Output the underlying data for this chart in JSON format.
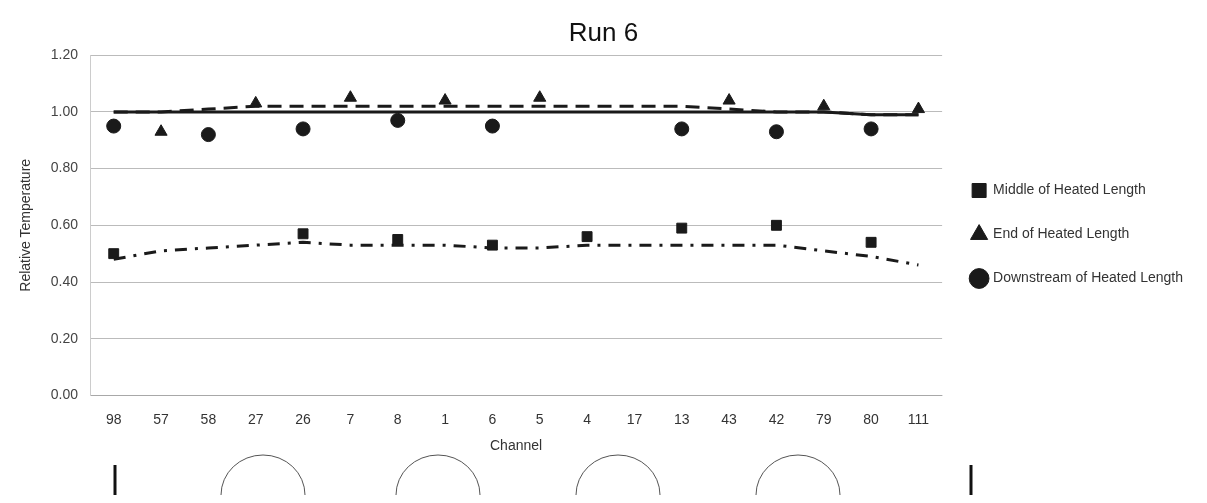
{
  "chart_data": {
    "type": "scatter",
    "title": "Run 6",
    "xlabel": "Channel",
    "ylabel": "Relative Temperature",
    "categories": [
      "98",
      "57",
      "58",
      "27",
      "26",
      "7",
      "8",
      "1",
      "6",
      "5",
      "4",
      "17",
      "13",
      "43",
      "42",
      "79",
      "80",
      "111"
    ],
    "series": [
      {
        "name": "Middle of Heated Length",
        "marker": "square",
        "color": "#1a1a1a",
        "values": [
          0.5,
          null,
          null,
          null,
          0.57,
          null,
          0.55,
          null,
          0.53,
          null,
          0.56,
          null,
          0.59,
          null,
          0.6,
          null,
          0.54,
          null
        ]
      },
      {
        "name": "End of Heated Length",
        "marker": "triangle",
        "color": "#1a1a1a",
        "values": [
          null,
          0.93,
          null,
          1.03,
          null,
          1.05,
          null,
          1.04,
          null,
          1.05,
          null,
          null,
          null,
          1.04,
          null,
          1.02,
          null,
          1.01
        ]
      },
      {
        "name": "Downstream of Heated Length",
        "marker": "circle",
        "color": "#1a1a1a",
        "values": [
          0.95,
          null,
          0.92,
          null,
          0.94,
          null,
          0.97,
          null,
          0.95,
          null,
          null,
          null,
          0.94,
          null,
          0.93,
          null,
          0.94,
          null
        ]
      },
      {
        "type": "line",
        "line_style": "dotted",
        "color": "#1a1a1a",
        "values": [
          0.48,
          0.51,
          0.52,
          0.53,
          0.54,
          0.53,
          0.53,
          0.53,
          0.52,
          0.52,
          0.53,
          0.53,
          0.53,
          0.53,
          0.53,
          0.51,
          0.49,
          0.46
        ]
      },
      {
        "type": "line",
        "line_style": "dashed",
        "color": "#1a1a1a",
        "values": [
          1.0,
          1.0,
          1.01,
          1.02,
          1.02,
          1.02,
          1.02,
          1.02,
          1.02,
          1.02,
          1.02,
          1.02,
          1.02,
          1.01,
          1.0,
          1.0,
          0.99,
          0.99
        ]
      },
      {
        "type": "line",
        "line_style": "solid",
        "color": "#1a1a1a",
        "values": [
          1.0,
          1.0,
          1.0,
          1.0,
          1.0,
          1.0,
          1.0,
          1.0,
          1.0,
          1.0,
          1.0,
          1.0,
          1.0,
          1.0,
          1.0,
          1.0,
          0.99,
          0.99
        ]
      }
    ],
    "ylim": [
      0,
      1.2
    ],
    "yticks": [
      {
        "value": 0,
        "label": "0.00"
      },
      {
        "value": 0.2,
        "label": "0.20"
      },
      {
        "value": 0.4,
        "label": "0.40"
      },
      {
        "value": 0.6,
        "label": "0.60"
      },
      {
        "value": 0.8,
        "label": "0.80"
      },
      {
        "value": 1,
        "label": "1.00"
      },
      {
        "value": 1.2,
        "label": "1.20"
      }
    ],
    "grid": "y",
    "legend": "right"
  }
}
